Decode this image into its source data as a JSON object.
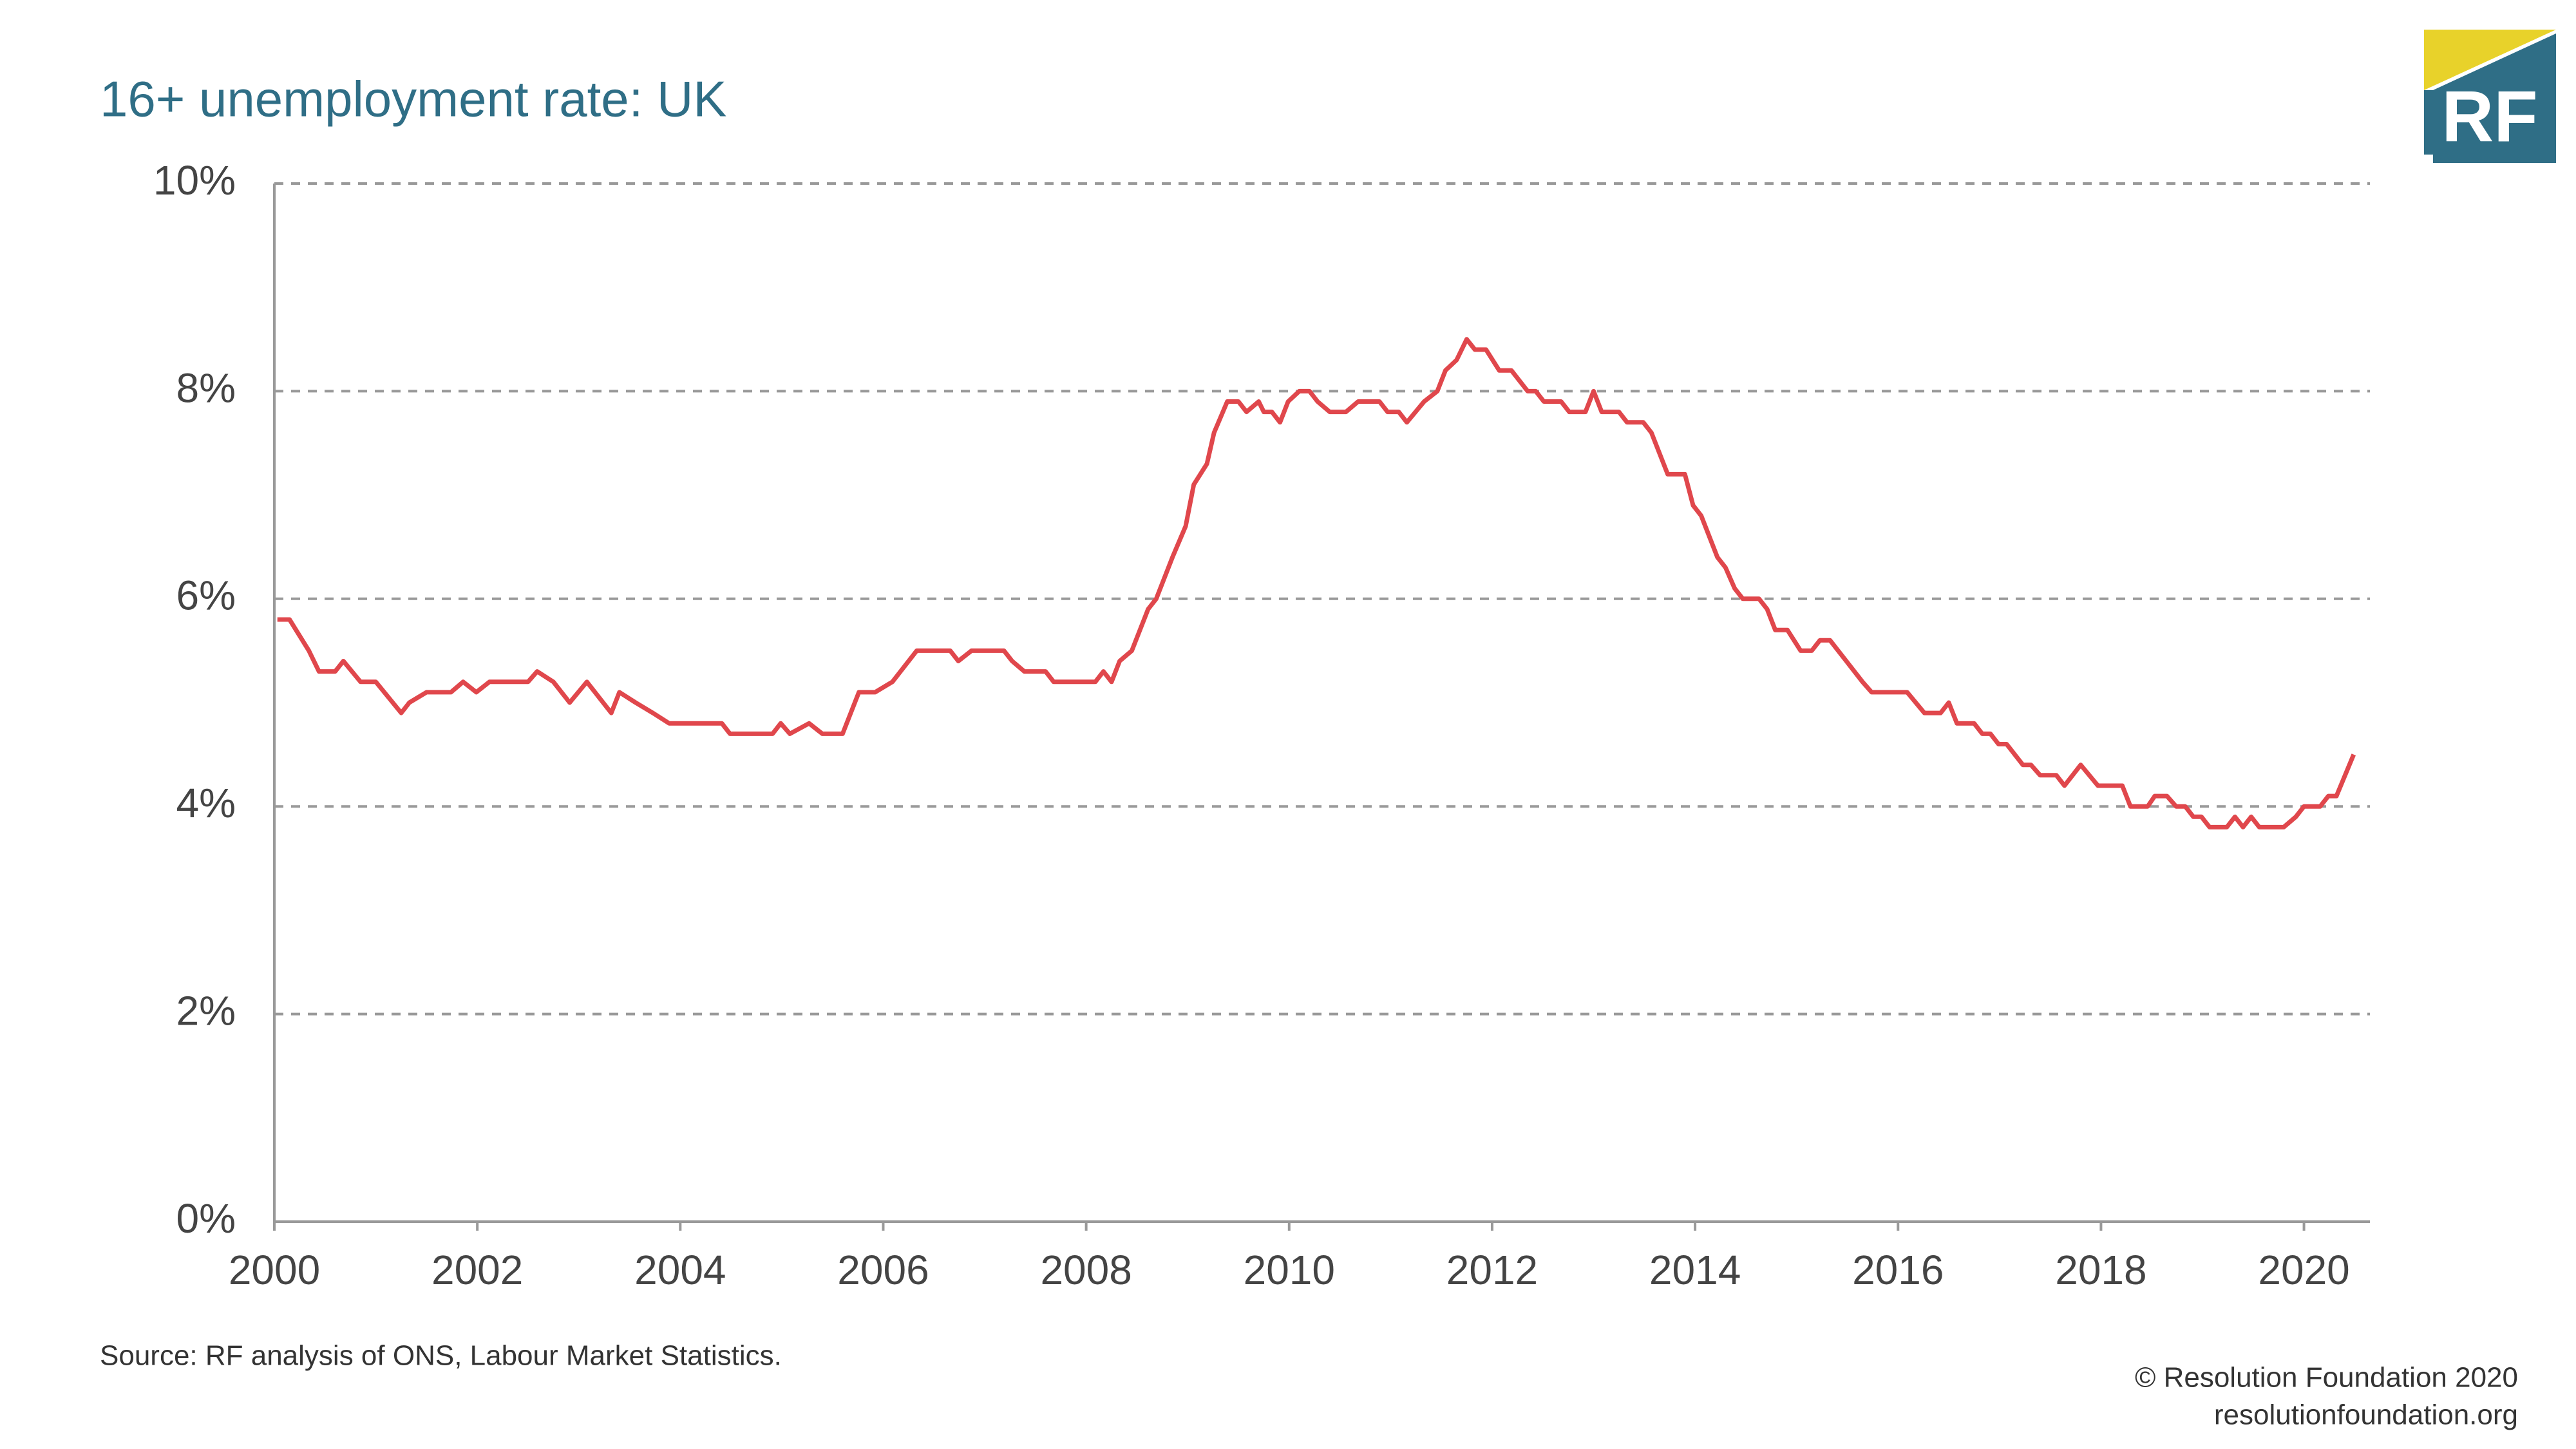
{
  "chart_data": {
    "type": "line",
    "title": "16+ unemployment rate: UK",
    "source": "Source: RF analysis of ONS, Labour Market Statistics.",
    "copyright": "© Resolution Foundation 2020",
    "website": "resolutionfoundation.org",
    "logo": "RF",
    "color": "#e0474c",
    "grid": true,
    "x": [
      2000.03,
      2000.15,
      2000.34,
      2000.44,
      2000.6,
      2000.68,
      2000.85,
      2001.0,
      2001.25,
      2001.33,
      2001.5,
      2001.74,
      2001.86,
      2001.99,
      2002.12,
      2002.5,
      2002.59,
      2002.75,
      2002.91,
      2003.08,
      2003.32,
      2003.4,
      2003.56,
      2003.73,
      2003.89,
      2004.41,
      2004.49,
      2004.91,
      2004.99,
      2005.08,
      2005.27,
      2005.4,
      2005.6,
      2005.76,
      2005.92,
      2006.09,
      2006.33,
      2006.66,
      2006.74,
      2006.87,
      2007.19,
      2007.27,
      2007.39,
      2007.6,
      2007.68,
      2008.09,
      2008.17,
      2008.25,
      2008.33,
      2008.45,
      2008.61,
      2008.69,
      2008.85,
      2008.98,
      2009.06,
      2009.19,
      2009.26,
      2009.39,
      2009.5,
      2009.58,
      2009.7,
      2009.75,
      2009.83,
      2009.91,
      2009.99,
      2010.1,
      2010.2,
      2010.28,
      2010.4,
      2010.56,
      2010.68,
      2010.89,
      2010.97,
      2011.08,
      2011.16,
      2011.33,
      2011.46,
      2011.54,
      2011.65,
      2011.75,
      2011.83,
      2011.94,
      2012.07,
      2012.19,
      2012.35,
      2012.43,
      2012.51,
      2012.68,
      2012.76,
      2012.92,
      2013.0,
      2013.08,
      2013.25,
      2013.33,
      2013.49,
      2013.57,
      2013.73,
      2013.9,
      2013.98,
      2014.06,
      2014.22,
      2014.3,
      2014.39,
      2014.47,
      2014.63,
      2014.71,
      2014.79,
      2014.91,
      2015.04,
      2015.15,
      2015.23,
      2015.33,
      2015.49,
      2015.65,
      2015.74,
      2016.09,
      2016.26,
      2016.42,
      2016.5,
      2016.58,
      2016.75,
      2016.83,
      2016.91,
      2016.99,
      2017.07,
      2017.23,
      2017.31,
      2017.4,
      2017.56,
      2017.64,
      2017.8,
      2017.97,
      2018.21,
      2018.29,
      2018.46,
      2018.53,
      2018.65,
      2018.74,
      2018.83,
      2018.91,
      2018.99,
      2019.07,
      2019.24,
      2019.32,
      2019.4,
      2019.48,
      2019.56,
      2019.8,
      2019.92,
      2020.0,
      2020.16,
      2020.24,
      2020.32,
      2020.49
    ],
    "values": [
      5.8,
      5.8,
      5.5,
      5.3,
      5.3,
      5.4,
      5.2,
      5.2,
      4.9,
      5.0,
      5.1,
      5.1,
      5.2,
      5.1,
      5.2,
      5.2,
      5.3,
      5.2,
      5.0,
      5.2,
      4.9,
      5.1,
      5.0,
      4.9,
      4.8,
      4.8,
      4.7,
      4.7,
      4.8,
      4.7,
      4.8,
      4.7,
      4.7,
      5.1,
      5.1,
      5.2,
      5.5,
      5.5,
      5.4,
      5.5,
      5.5,
      5.4,
      5.3,
      5.3,
      5.2,
      5.2,
      5.3,
      5.2,
      5.4,
      5.5,
      5.9,
      6.0,
      6.4,
      6.7,
      7.1,
      7.3,
      7.6,
      7.9,
      7.9,
      7.8,
      7.9,
      7.8,
      7.8,
      7.7,
      7.9,
      8.0,
      8.0,
      7.9,
      7.8,
      7.8,
      7.9,
      7.9,
      7.8,
      7.8,
      7.7,
      7.9,
      8.0,
      8.2,
      8.3,
      8.5,
      8.4,
      8.4,
      8.2,
      8.2,
      8.0,
      8.0,
      7.9,
      7.9,
      7.8,
      7.8,
      8.0,
      7.8,
      7.8,
      7.7,
      7.7,
      7.6,
      7.2,
      7.2,
      6.9,
      6.8,
      6.4,
      6.3,
      6.1,
      6.0,
      6.0,
      5.9,
      5.7,
      5.7,
      5.5,
      5.5,
      5.6,
      5.6,
      5.4,
      5.2,
      5.1,
      5.1,
      4.9,
      4.9,
      5.0,
      4.8,
      4.8,
      4.7,
      4.7,
      4.6,
      4.6,
      4.4,
      4.4,
      4.3,
      4.3,
      4.2,
      4.4,
      4.2,
      4.2,
      4.0,
      4.0,
      4.1,
      4.1,
      4.0,
      4.0,
      3.9,
      3.9,
      3.8,
      3.8,
      3.9,
      3.8,
      3.9,
      3.8,
      3.8,
      3.9,
      4.0,
      4.0,
      4.1,
      4.1,
      4.5
    ],
    "xlim": [
      2000,
      2020.65
    ],
    "xticks": [
      2000,
      2002,
      2004,
      2006,
      2008,
      2010,
      2012,
      2014,
      2016,
      2018,
      2020
    ],
    "ylim": [
      0,
      10
    ],
    "yticks": [
      {
        "value": 0,
        "label": "0%"
      },
      {
        "value": 2,
        "label": "2%"
      },
      {
        "value": 4,
        "label": "4%"
      },
      {
        "value": 6,
        "label": "6%"
      },
      {
        "value": 8,
        "label": "8%"
      },
      {
        "value": 10,
        "label": "10%"
      }
    ]
  }
}
